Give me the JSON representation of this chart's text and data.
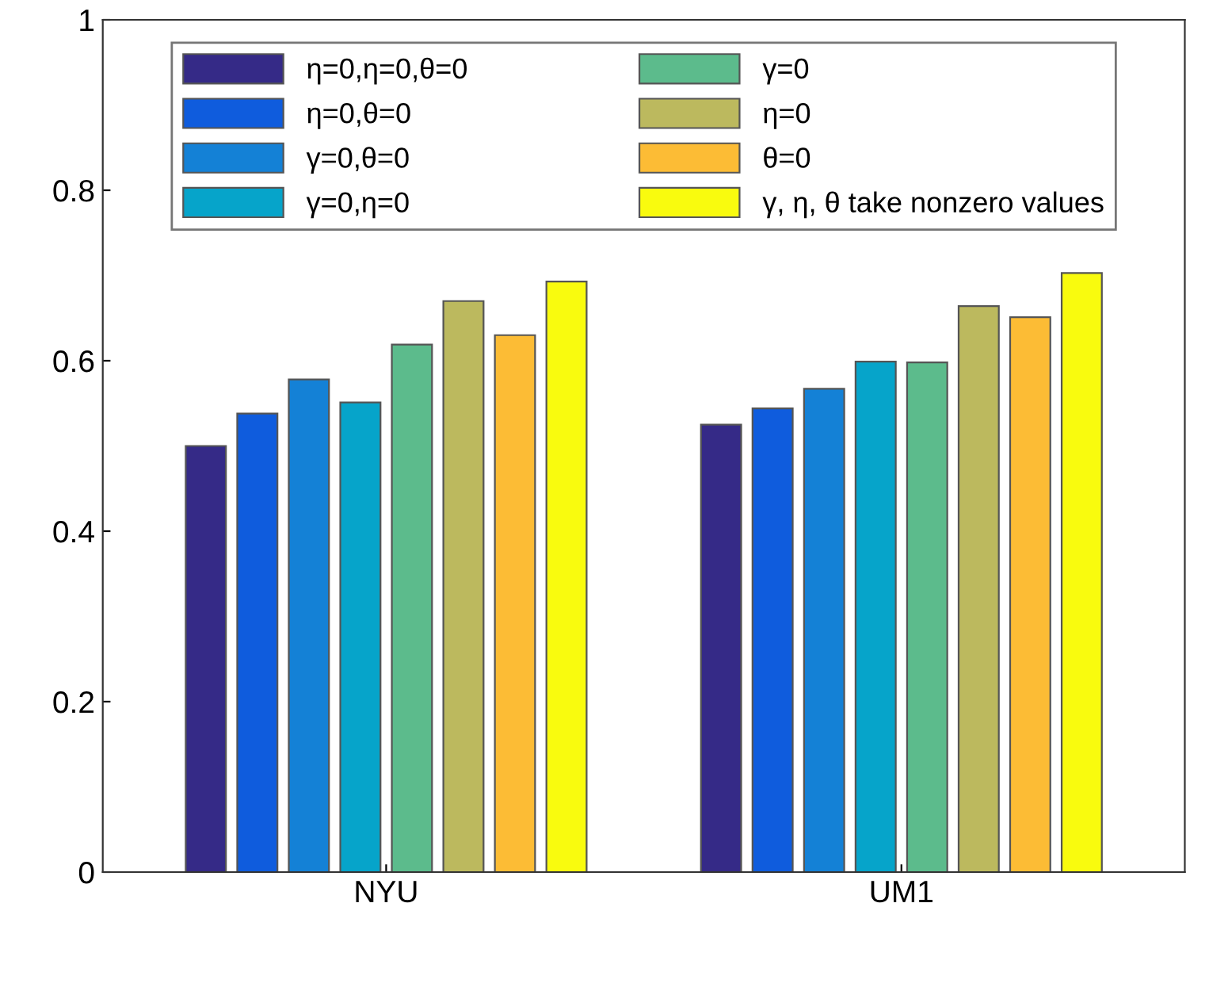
{
  "chart_data": {
    "type": "bar",
    "categories": [
      "NYU",
      "UM1"
    ],
    "series": [
      {
        "name": "η=0,η=0,θ=0",
        "color": "#352a87",
        "values": [
          0.5,
          0.525
        ]
      },
      {
        "name": "η=0,θ=0",
        "color": "#0f5cdd",
        "values": [
          0.538,
          0.544
        ]
      },
      {
        "name": "γ=0,θ=0",
        "color": "#1481d6",
        "values": [
          0.578,
          0.567
        ]
      },
      {
        "name": "γ=0,η=0",
        "color": "#06a4ca",
        "values": [
          0.551,
          0.599
        ]
      },
      {
        "name": "γ=0",
        "color": "#5cbb8c",
        "values": [
          0.619,
          0.598
        ]
      },
      {
        "name": "η=0",
        "color": "#bcb95e",
        "values": [
          0.67,
          0.664
        ]
      },
      {
        "name": "θ=0",
        "color": "#fcbc35",
        "values": [
          0.63,
          0.651
        ]
      },
      {
        "name": "γ, η, θ take nonzero values",
        "color": "#f9fb0e",
        "values": [
          0.693,
          0.703
        ]
      }
    ],
    "ylim": [
      0,
      1
    ],
    "yticks": [
      0,
      0.2,
      0.4,
      0.6,
      0.8,
      1
    ],
    "grid": false,
    "legend": "top"
  }
}
